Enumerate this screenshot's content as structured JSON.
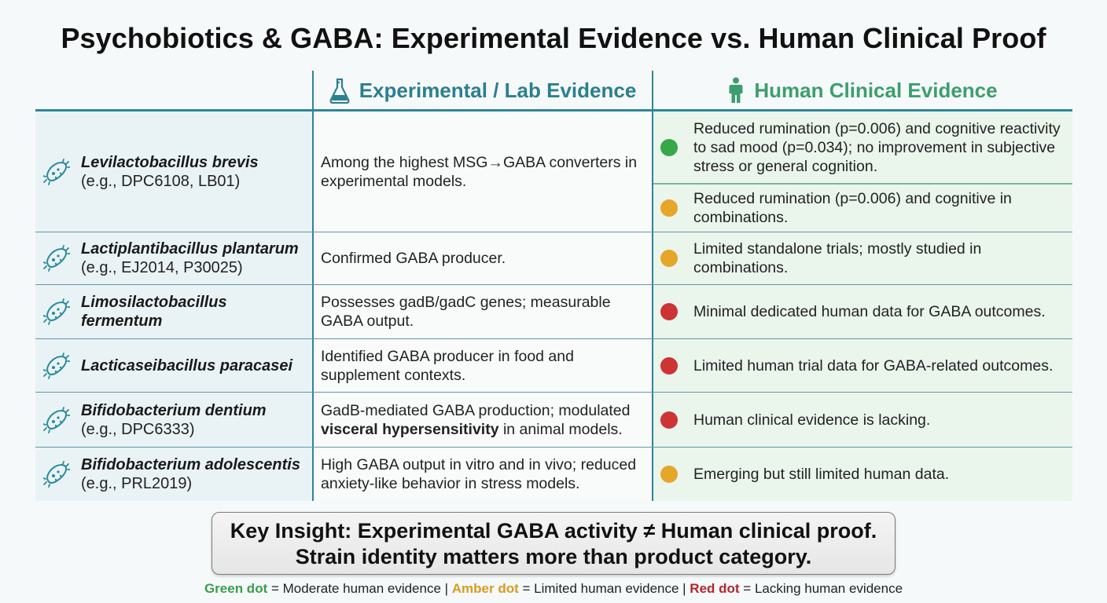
{
  "title": "Psychobiotics & GABA: Experimental Evidence vs. Human Clinical Proof",
  "headers": {
    "experimental": "Experimental / Lab Evidence",
    "human": "Human Clinical Evidence"
  },
  "colors": {
    "teal": "#2b7f8f",
    "green_header": "#3c9e6e",
    "green": "#36a84a",
    "amber": "#e6a62a",
    "red": "#cd3434"
  },
  "rows": [
    {
      "strain": "Levilactobacillus brevis",
      "example": "(e.g., DPC6108, LB01)",
      "experimental": "Among the highest MSG→GABA converters in experimental models.",
      "human": [
        {
          "level": "green",
          "text": "Reduced rumination (p=0.006) and cognitive reactivity to sad mood (p=0.034); no improvement in subjective stress or general cognition."
        },
        {
          "level": "amber",
          "text": "Reduced rumination (p=0.006) and cognitive in combinations."
        }
      ]
    },
    {
      "strain": "Lactiplantibacillus plantarum",
      "example": "(e.g., EJ2014, P30025)",
      "experimental": "Confirmed GABA producer.",
      "human": [
        {
          "level": "amber",
          "text": "Limited standalone trials; mostly studied in combinations."
        }
      ]
    },
    {
      "strain": "Limosilactobacillus fermentum",
      "example": "",
      "experimental": "Possesses gadB/gadC genes; measurable GABA output.",
      "human": [
        {
          "level": "red",
          "text": "Minimal dedicated human data for GABA outcomes."
        }
      ]
    },
    {
      "strain": "Lacticaseibacillus paracasei",
      "example": "",
      "experimental": "Identified GABA producer in food and supplement contexts.",
      "human": [
        {
          "level": "red",
          "text": "Limited human trial data for GABA-related outcomes."
        }
      ]
    },
    {
      "strain": "Bifidobacterium dentium",
      "example": "(e.g., DPC6333)",
      "experimental_pre": "GadB-mediated GABA production; modulated ",
      "experimental_bold": "visceral hypersensitivity",
      "experimental_post": " in animal models.",
      "human": [
        {
          "level": "red",
          "text": "Human clinical evidence is lacking."
        }
      ]
    },
    {
      "strain": "Bifidobacterium adolescentis",
      "example": "(e.g., PRL2019)",
      "experimental": "High GABA output in vitro and in vivo; reduced anxiety-like behavior in stress models.",
      "human": [
        {
          "level": "amber",
          "text": "Emerging but still limited human data."
        }
      ]
    }
  ],
  "insight": {
    "line1": "Key Insight: Experimental GABA activity ≠ Human clinical proof.",
    "line2": "Strain identity matters more than product category."
  },
  "legend": {
    "green_label": "Green dot",
    "green_text": " = Moderate human evidence | ",
    "amber_label": "Amber dot",
    "amber_text": " = Limited human evidence | ",
    "red_label": "Red dot",
    "red_text": " = Lacking human evidence"
  }
}
